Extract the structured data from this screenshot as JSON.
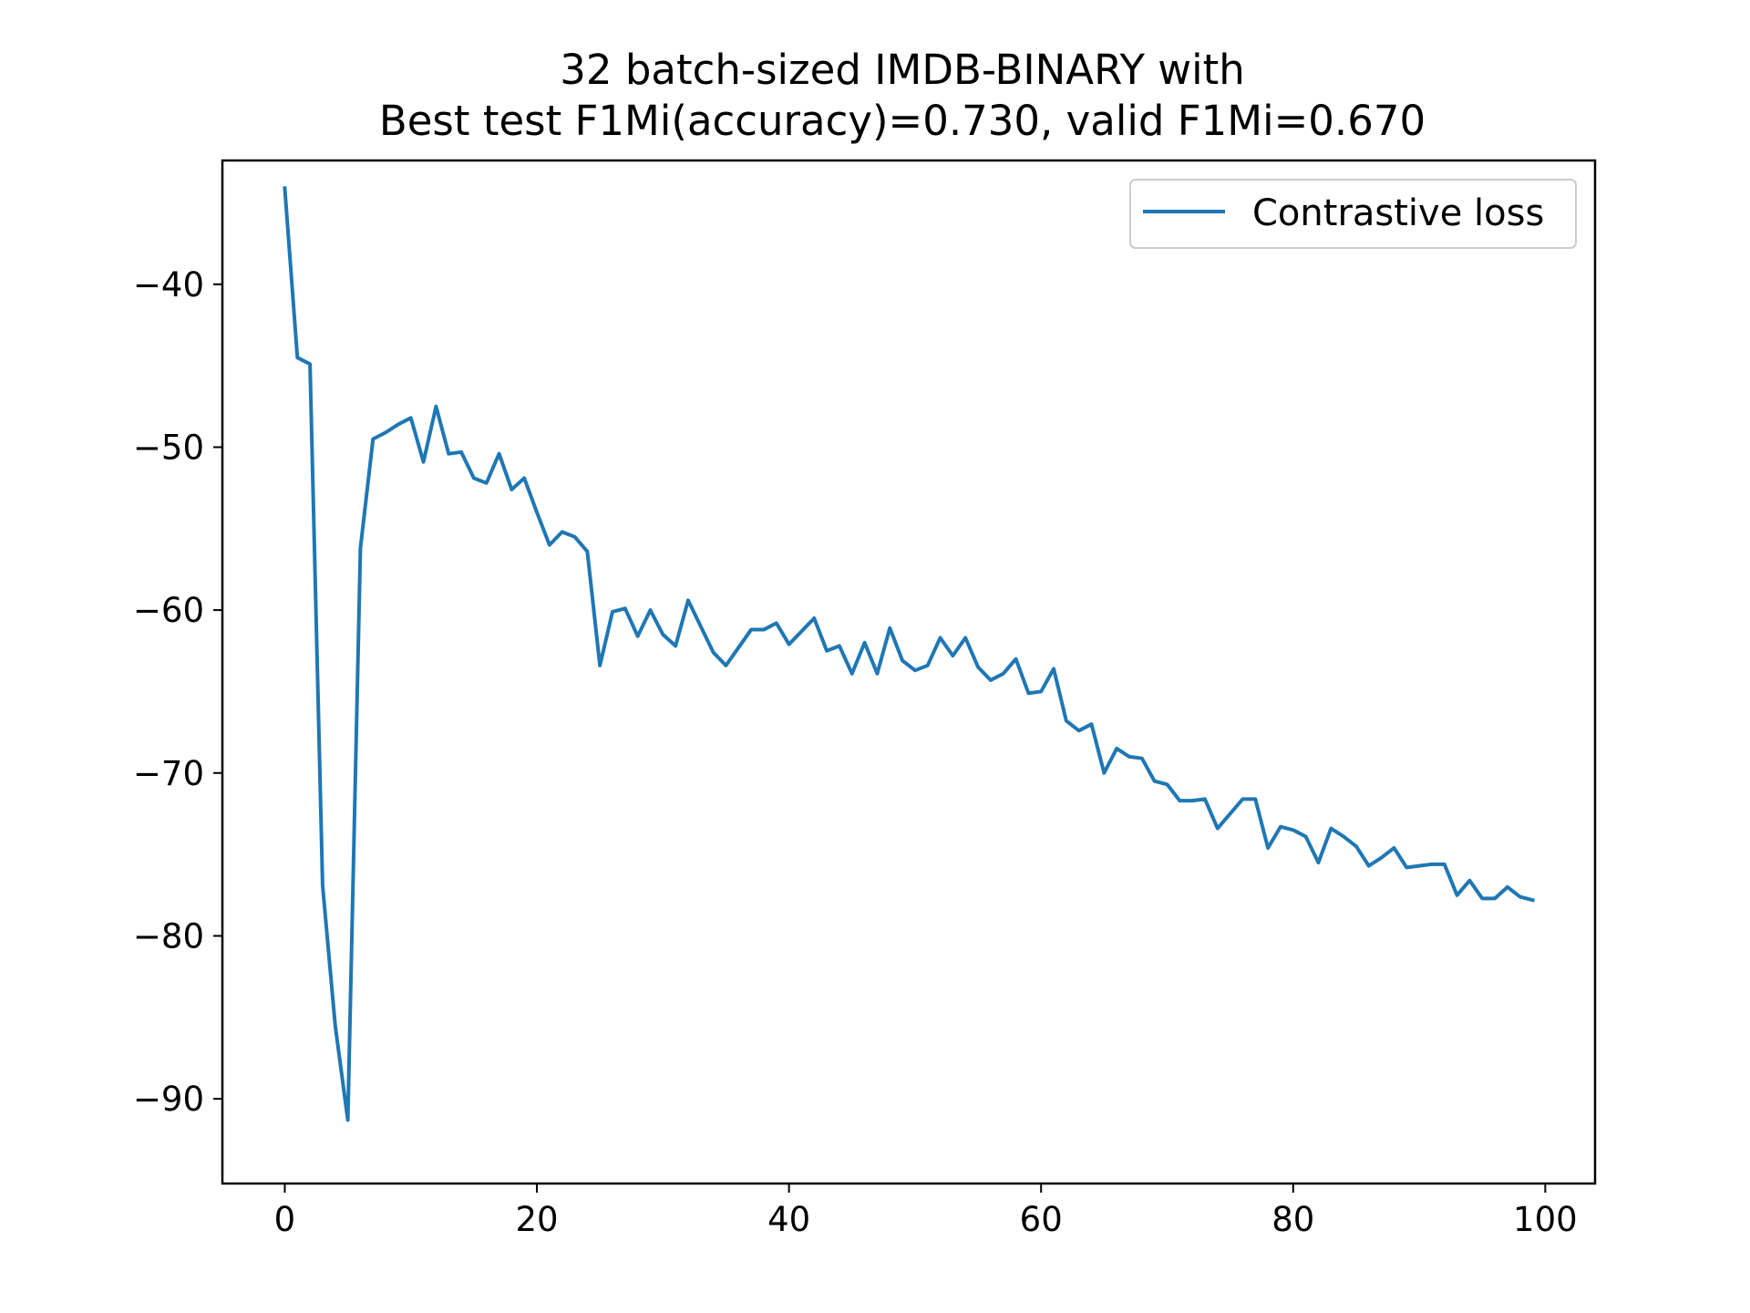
{
  "chart_data": {
    "type": "line",
    "title_line1": "32 batch-sized IMDB-BINARY with",
    "title_line2": "Best test F1Mi(accuracy)=0.730, valid F1Mi=0.670",
    "xlabel": "",
    "ylabel": "",
    "xlim": [
      -4.95,
      103.95
    ],
    "ylim": [
      -95.2,
      -32.4
    ],
    "x_ticks": [
      0,
      20,
      40,
      60,
      80,
      100
    ],
    "x_tick_labels": [
      "0",
      "20",
      "40",
      "60",
      "80",
      "100"
    ],
    "y_ticks": [
      -40,
      -50,
      -60,
      -70,
      -80,
      -90
    ],
    "y_tick_labels": [
      "−40",
      "−50",
      "−60",
      "−70",
      "−80",
      "−90"
    ],
    "grid": false,
    "legend_position": "top-right",
    "series": [
      {
        "name": "Contrastive loss",
        "color": "#1f77b4",
        "x": [
          0,
          1,
          2,
          3,
          4,
          5,
          6,
          7,
          8,
          9,
          10,
          11,
          12,
          13,
          14,
          15,
          16,
          17,
          18,
          19,
          20,
          21,
          22,
          23,
          24,
          25,
          26,
          27,
          28,
          29,
          30,
          31,
          32,
          33,
          34,
          35,
          36,
          37,
          38,
          39,
          40,
          41,
          42,
          43,
          44,
          45,
          46,
          47,
          48,
          49,
          50,
          51,
          52,
          53,
          54,
          55,
          56,
          57,
          58,
          59,
          60,
          61,
          62,
          63,
          64,
          65,
          66,
          67,
          68,
          69,
          70,
          71,
          72,
          73,
          74,
          75,
          76,
          77,
          78,
          79,
          80,
          81,
          82,
          83,
          84,
          85,
          86,
          87,
          88,
          89,
          90,
          91,
          92,
          93,
          94,
          95,
          96,
          97,
          98,
          99
        ],
        "values": [
          -34.1,
          -44.5,
          -44.9,
          -76.9,
          -85.5,
          -91.3,
          -56.2,
          -49.5,
          -49.1,
          -48.6,
          -48.2,
          -50.9,
          -47.5,
          -50.4,
          -50.3,
          -51.9,
          -52.2,
          -50.4,
          -52.6,
          -51.9,
          -54.0,
          -56.0,
          -55.2,
          -55.5,
          -56.4,
          -63.4,
          -60.1,
          -59.9,
          -61.6,
          -60.0,
          -61.5,
          -62.2,
          -59.4,
          -61.0,
          -62.6,
          -63.4,
          -62.3,
          -61.2,
          -61.2,
          -60.8,
          -62.1,
          -61.3,
          -60.5,
          -62.5,
          -62.2,
          -63.9,
          -62.0,
          -63.9,
          -61.1,
          -63.1,
          -63.7,
          -63.4,
          -61.7,
          -62.8,
          -61.7,
          -63.5,
          -64.3,
          -63.9,
          -63.0,
          -65.1,
          -65.0,
          -63.6,
          -66.8,
          -67.4,
          -67.0,
          -70.0,
          -68.5,
          -69.0,
          -69.1,
          -70.5,
          -70.7,
          -71.7,
          -71.7,
          -71.6,
          -73.4,
          -72.5,
          -71.6,
          -71.6,
          -74.6,
          -73.3,
          -73.5,
          -73.9,
          -75.5,
          -73.4,
          -73.9,
          -74.5,
          -75.7,
          -75.2,
          -74.6,
          -75.8,
          -75.7,
          -75.6,
          -75.6,
          -77.5,
          -76.6,
          -77.7,
          -77.7,
          -77.0,
          -77.6,
          -77.8
        ]
      }
    ]
  }
}
